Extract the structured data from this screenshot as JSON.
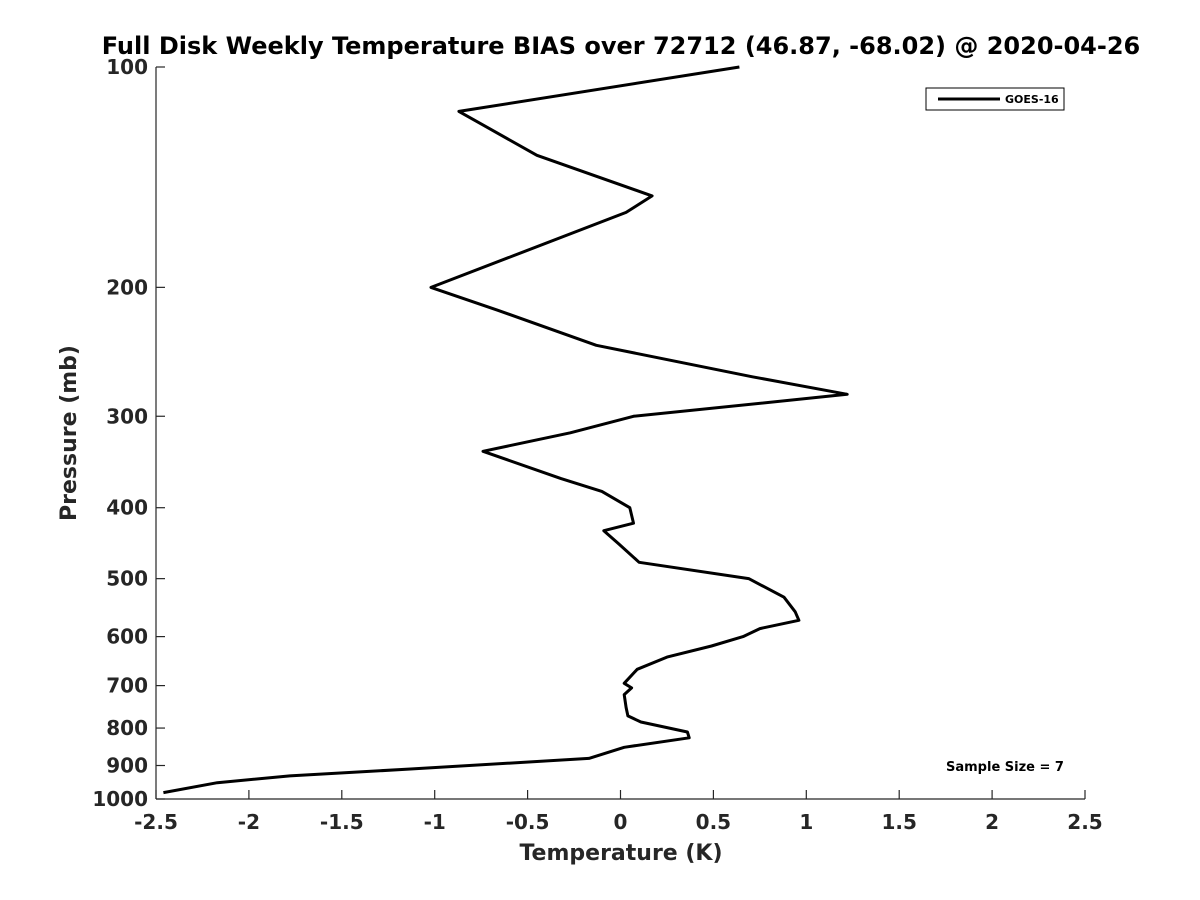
{
  "chart_data": {
    "type": "line",
    "title": "Full Disk Weekly Temperature BIAS over 72712 (46.87, -68.02) @ 2020-04-26",
    "xlabel": "Temperature (K)",
    "ylabel": "Pressure (mb)",
    "xlim": [
      -2.5,
      2.5
    ],
    "ylim": [
      100,
      1000
    ],
    "y_scale": "log",
    "y_reversed": true,
    "x_ticks": [
      "-2.5",
      "-2",
      "-1.5",
      "-1",
      "-0.5",
      "0",
      "0.5",
      "1",
      "1.5",
      "2",
      "2.5"
    ],
    "y_ticks": [
      "100",
      "200",
      "300",
      "400",
      "500",
      "600",
      "700",
      "800",
      "900",
      "1000"
    ],
    "grid": false,
    "legend": {
      "position": "top-right",
      "entries": [
        "GOES-16"
      ]
    },
    "annotation": "Sample Size = 7",
    "series": [
      {
        "name": "GOES-16",
        "color": "#000000",
        "x": [
          0.64,
          -0.87,
          -0.45,
          0.17,
          0.03,
          -1.02,
          -0.66,
          -0.13,
          0.71,
          1.22,
          0.07,
          -0.27,
          -0.74,
          -0.32,
          -0.1,
          0.05,
          0.07,
          -0.09,
          -0.01,
          0.1,
          0.69,
          0.88,
          0.94,
          0.96,
          0.75,
          0.66,
          0.49,
          0.25,
          0.09,
          0.02,
          0.06,
          0.02,
          0.03,
          0.04,
          0.11,
          0.36,
          0.37,
          0.02,
          -0.17,
          -1.13,
          -1.78,
          -2.17,
          -2.46
        ],
        "y": [
          100,
          115,
          132,
          150,
          158,
          200,
          215,
          240,
          265,
          280,
          300,
          316,
          335,
          365,
          380,
          400,
          420,
          430,
          448,
          475,
          500,
          530,
          555,
          570,
          585,
          600,
          618,
          640,
          665,
          695,
          705,
          720,
          750,
          770,
          785,
          810,
          825,
          850,
          880,
          910,
          930,
          950,
          980
        ]
      }
    ]
  }
}
